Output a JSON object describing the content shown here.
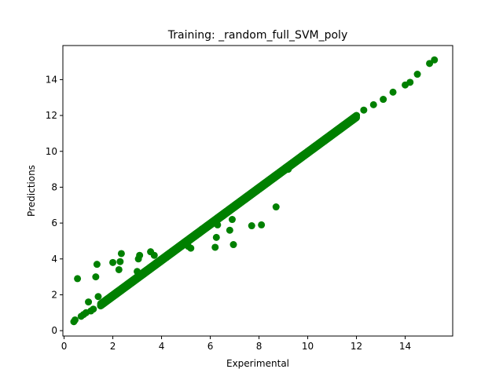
{
  "chart_data": {
    "type": "scatter",
    "title": "Training: _random_full_SVM_poly",
    "xlabel": "Experimental",
    "ylabel": "Predictions",
    "xlim": [
      -0.05,
      15.95
    ],
    "ylim": [
      -0.3,
      15.9
    ],
    "xticks": [
      0,
      2,
      4,
      6,
      8,
      10,
      12,
      14
    ],
    "yticks": [
      0,
      2,
      4,
      6,
      8,
      10,
      12,
      14
    ],
    "grid": false,
    "legend": "none",
    "marker_color": "#008000",
    "series": [
      {
        "points": [
          [
            0.4,
            0.5
          ],
          [
            0.45,
            0.6
          ],
          [
            0.55,
            2.9
          ],
          [
            0.7,
            0.8
          ],
          [
            0.8,
            0.9
          ],
          [
            0.9,
            1.0
          ],
          [
            1.0,
            1.6
          ],
          [
            1.1,
            1.1
          ],
          [
            1.2,
            1.2
          ],
          [
            1.3,
            3.0
          ],
          [
            1.35,
            3.7
          ],
          [
            1.4,
            1.9
          ],
          [
            1.5,
            1.4
          ],
          [
            2.0,
            3.8
          ],
          [
            2.2,
            2.1
          ],
          [
            2.25,
            3.4
          ],
          [
            2.3,
            3.85
          ],
          [
            2.35,
            4.3
          ],
          [
            2.4,
            2.3
          ],
          [
            2.6,
            2.5
          ],
          [
            2.8,
            2.7
          ],
          [
            3.0,
            3.3
          ],
          [
            3.05,
            4.0
          ],
          [
            3.1,
            4.2
          ],
          [
            3.5,
            3.4
          ],
          [
            3.55,
            4.4
          ],
          [
            3.7,
            4.2
          ],
          [
            4.0,
            3.9
          ],
          [
            5.1,
            4.7
          ],
          [
            5.2,
            4.6
          ],
          [
            5.4,
            5.3
          ],
          [
            6.0,
            5.9
          ],
          [
            6.2,
            4.65
          ],
          [
            6.25,
            5.2
          ],
          [
            6.3,
            5.9
          ],
          [
            6.8,
            5.6
          ],
          [
            6.9,
            6.2
          ],
          [
            6.95,
            4.8
          ],
          [
            7.7,
            5.85
          ],
          [
            8.1,
            5.9
          ],
          [
            8.7,
            6.9
          ],
          [
            9.2,
            9.0
          ],
          [
            10.5,
            10.4
          ],
          [
            11.0,
            10.9
          ],
          [
            11.5,
            11.4
          ],
          [
            12.0,
            12.0
          ],
          [
            12.3,
            12.3
          ],
          [
            12.7,
            12.6
          ],
          [
            13.1,
            12.9
          ],
          [
            13.5,
            13.3
          ],
          [
            14.0,
            13.7
          ],
          [
            14.2,
            13.85
          ],
          [
            14.5,
            14.3
          ],
          [
            15.0,
            14.9
          ],
          [
            15.2,
            15.1
          ]
        ],
        "band_range": [
          1.5,
          12.0
        ]
      }
    ]
  }
}
